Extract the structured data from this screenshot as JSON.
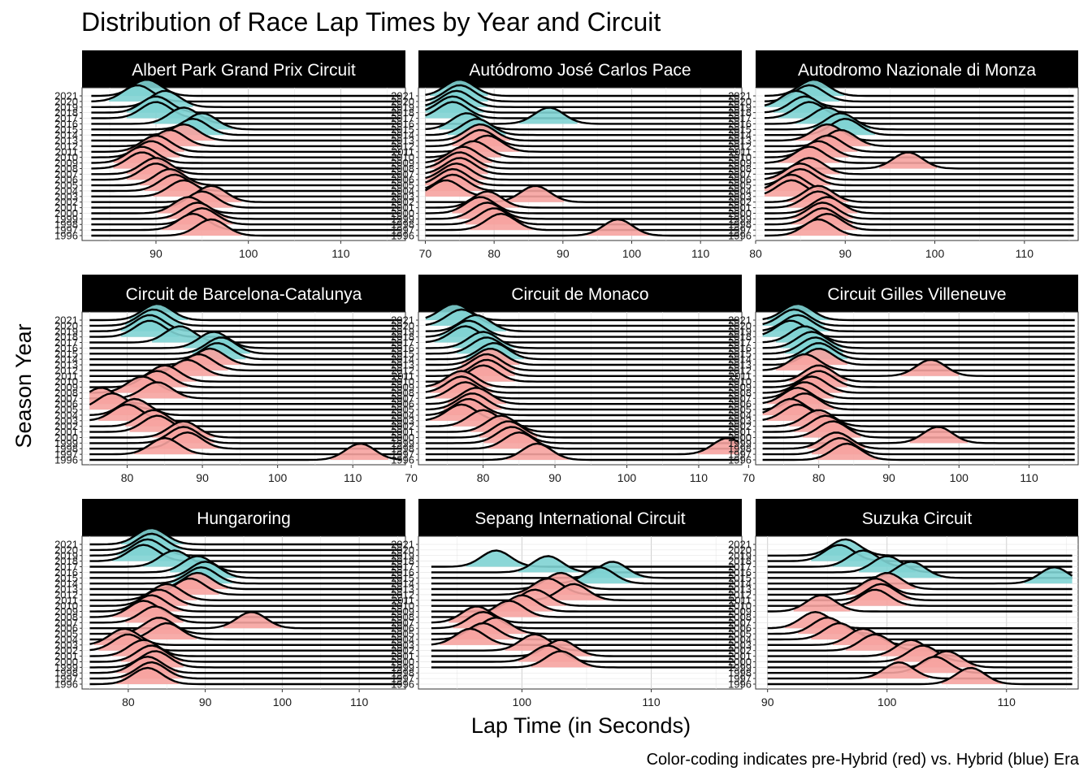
{
  "chart_data": {
    "type": "ridgeline",
    "title": "Distribution of Race Lap Times by Year and Circuit",
    "xlabel": "Lap Time (in Seconds)",
    "ylabel": "Season Year",
    "caption": "Color-coding indicates pre-Hybrid (red) vs. Hybrid (blue) Era",
    "years": [
      1996,
      1997,
      1998,
      1999,
      2000,
      2001,
      2002,
      2003,
      2004,
      2005,
      2006,
      2007,
      2008,
      2009,
      2010,
      2011,
      2012,
      2013,
      2014,
      2015,
      2016,
      2017,
      2018,
      2019,
      2020,
      2021
    ],
    "y_tick_labels": [
      "1996",
      "1997",
      "1998",
      "1999",
      "2000",
      "2001",
      "2002",
      "2003",
      "2004",
      "2005",
      "2006",
      "2007",
      "2008",
      "2009",
      "2010",
      "2011",
      "2012",
      "2013",
      "2014",
      "2015",
      "2016",
      "2017",
      "2018",
      "2019",
      "2020",
      "2021"
    ],
    "hybrid_start_year": 2014,
    "colors": {
      "pre_hybrid": "#f6a3a0",
      "hybrid": "#7fd3d3",
      "line": "#000000",
      "strip": "#000000"
    },
    "grid": true,
    "panels": [
      {
        "circuit": "Albert Park Grand Prix Circuit",
        "xlim": [
          82,
          117
        ],
        "xticks": [
          90,
          100,
          110
        ],
        "peaks": {
          "1996": 96,
          "1997": 94,
          "1998": 95,
          "1999": 94.5,
          "2000": 93.5,
          "2001": 95,
          "2002": 96,
          "2003": 93,
          "2004": 92,
          "2005": 91.5,
          "2006": 90,
          "2007": 90,
          "2008": 88.5,
          "2009": 88.5,
          "2010": 89.5,
          "2011": 90,
          "2012": 91.5,
          "2013": 93,
          "2014": 94,
          "2015": 95,
          "2016": 93,
          "2017": 90,
          "2018": 90,
          "2019": 91,
          "2020": 88,
          "2021": 89
        }
      },
      {
        "circuit": "Autódromo José Carlos Pace",
        "xlim": [
          69,
          116
        ],
        "xticks": [
          70,
          80,
          90,
          100,
          110
        ],
        "peaks": {
          "1996": 98,
          "1997": 81,
          "1998": 80,
          "1999": 79,
          "2000": 78,
          "2001": 79,
          "2002": 86,
          "2003": 73,
          "2004": 74,
          "2005": 74,
          "2006": 74.5,
          "2007": 75,
          "2008": 75,
          "2009": 75.5,
          "2010": 77,
          "2011": 79,
          "2012": 78,
          "2013": 78,
          "2014": 77.5,
          "2015": 76,
          "2016": 88,
          "2017": 74,
          "2018": 74,
          "2019": 74.5,
          "2020": 75,
          "2021": 75
        }
      },
      {
        "circuit": "Autodromo Nazionale di Monza",
        "xlim": [
          80,
          116
        ],
        "xticks": [
          80,
          90,
          100,
          110
        ],
        "peaks": {
          "1996": 87,
          "1997": 88,
          "1998": 87.5,
          "1999": 87.5,
          "2000": 88,
          "2001": 87,
          "2002": 87,
          "2003": 84,
          "2004": 84,
          "2005": 85,
          "2006": 85,
          "2007": 86,
          "2008": 97,
          "2009": 86,
          "2010": 87,
          "2011": 88,
          "2012": 89.5,
          "2013": 88,
          "2014": 90,
          "2015": 89.5,
          "2016": 88,
          "2017": 86,
          "2018": 85.5,
          "2019": 84.5,
          "2020": 86,
          "2021": 86.5
        }
      },
      {
        "circuit": "Circuit de Barcelona-Catalunya",
        "xlim": [
          74,
          117
        ],
        "xticks": [
          80,
          90,
          100,
          110
        ],
        "peaks": {
          "1996": 111,
          "1997": 85,
          "1998": 88,
          "1999": 87.5,
          "2000": 87.5,
          "2001": 84,
          "2002": 83.5,
          "2003": 80,
          "2004": 81,
          "2005": 78,
          "2006": 76.5,
          "2007": 84,
          "2008": 82,
          "2009": 84,
          "2010": 85,
          "2011": 88,
          "2012": 89.5,
          "2013": 91,
          "2014": 92,
          "2015": 92.5,
          "2016": 91.5,
          "2017": 87,
          "2018": 83,
          "2019": 83,
          "2020": 83.5,
          "2021": 84
        }
      },
      {
        "circuit": "Circuit de Monaco",
        "xlim": [
          71,
          116
        ],
        "xticks": [
          70,
          80,
          90,
          100,
          110
        ],
        "peaks": {
          "1996": 87.5,
          "1997": 114,
          "1998": 85,
          "1999": 84,
          "2000": 83.5,
          "2001": 82.5,
          "2002": 80,
          "2003": 77,
          "2004": 78,
          "2005": 78.5,
          "2006": 79,
          "2007": 77.5,
          "2008": 77,
          "2009": 77,
          "2010": 80,
          "2011": 80.5,
          "2012": 80.5,
          "2013": 81,
          "2014": 81.5,
          "2015": 80.5,
          "2016": 80,
          "2017": 77.5,
          "2018": 78,
          "2019": 79,
          "2020": 77,
          "2021": 76
        }
      },
      {
        "circuit": "Circuit Gilles Villeneuve",
        "xlim": [
          71,
          117
        ],
        "xticks": [
          70,
          80,
          90,
          100,
          110
        ],
        "peaks": {
          "1996": 84,
          "1997": 83,
          "1998": 82.5,
          "1999": 97,
          "2000": 82,
          "2001": 81,
          "2002": 80,
          "2003": 77,
          "2004": 76,
          "2005": 78,
          "2006": 77,
          "2007": 78,
          "2008": 79,
          "2009": 80,
          "2010": 80,
          "2011": 96,
          "2012": 78,
          "2013": 80,
          "2014": 80,
          "2015": 79.5,
          "2016": 79,
          "2017": 78,
          "2018": 76,
          "2019": 77,
          "2020": 76.5,
          "2021": 77
        }
      },
      {
        "circuit": "Hungaroring",
        "xlim": [
          74,
          116
        ],
        "xticks": [
          80,
          90,
          100,
          110
        ],
        "peaks": {
          "1996": 82.5,
          "1997": 83,
          "1998": 82.5,
          "1999": 83.5,
          "2000": 83,
          "2001": 82,
          "2002": 80,
          "2003": 79.5,
          "2004": 85,
          "2005": 84,
          "2006": 96,
          "2007": 83.5,
          "2008": 82,
          "2009": 83,
          "2010": 84,
          "2011": 85,
          "2012": 88,
          "2013": 89,
          "2014": 89.5,
          "2015": 90,
          "2016": 89,
          "2017": 86,
          "2018": 82,
          "2019": 82.5,
          "2020": 83,
          "2021": 83
        }
      },
      {
        "circuit": "Sepang International Circuit",
        "xlim": [
          92,
          117
        ],
        "xticks": [
          100,
          110
        ],
        "years_present": [
          1999,
          2000,
          2001,
          2002,
          2003,
          2004,
          2005,
          2006,
          2007,
          2008,
          2009,
          2010,
          2011,
          2012,
          2013,
          2014,
          2015,
          2016,
          2017
        ],
        "peaks": {
          "1999": 103,
          "2000": 102,
          "2001": 103,
          "2002": 101,
          "2003": 96,
          "2004": 97,
          "2005": 98,
          "2006": 97,
          "2007": 96.5,
          "2008": 99,
          "2009": 100,
          "2010": 101,
          "2011": 104,
          "2012": 102,
          "2013": 103,
          "2014": 106,
          "2015": 107,
          "2016": 102,
          "2017": 98
        }
      },
      {
        "circuit": "Suzuka Circuit",
        "xlim": [
          89,
          116
        ],
        "xticks": [
          90,
          100,
          110
        ],
        "years_present": [
          1996,
          1997,
          1998,
          1999,
          2000,
          2001,
          2002,
          2003,
          2004,
          2005,
          2006,
          2009,
          2010,
          2011,
          2012,
          2013,
          2014,
          2015,
          2016,
          2017,
          2018,
          2019
        ],
        "peaks": {
          "1996": 107,
          "1997": 101,
          "1998": 104,
          "1999": 105,
          "2000": 103,
          "2001": 102,
          "2002": 99,
          "2003": 98,
          "2004": 96,
          "2005": 95,
          "2006": 94,
          "2009": 94.5,
          "2010": 99,
          "2011": 99.5,
          "2012": 99,
          "2013": 100,
          "2014": 114,
          "2015": 102,
          "2016": 100,
          "2017": 98,
          "2018": 96,
          "2019": 96.5
        }
      }
    ]
  }
}
